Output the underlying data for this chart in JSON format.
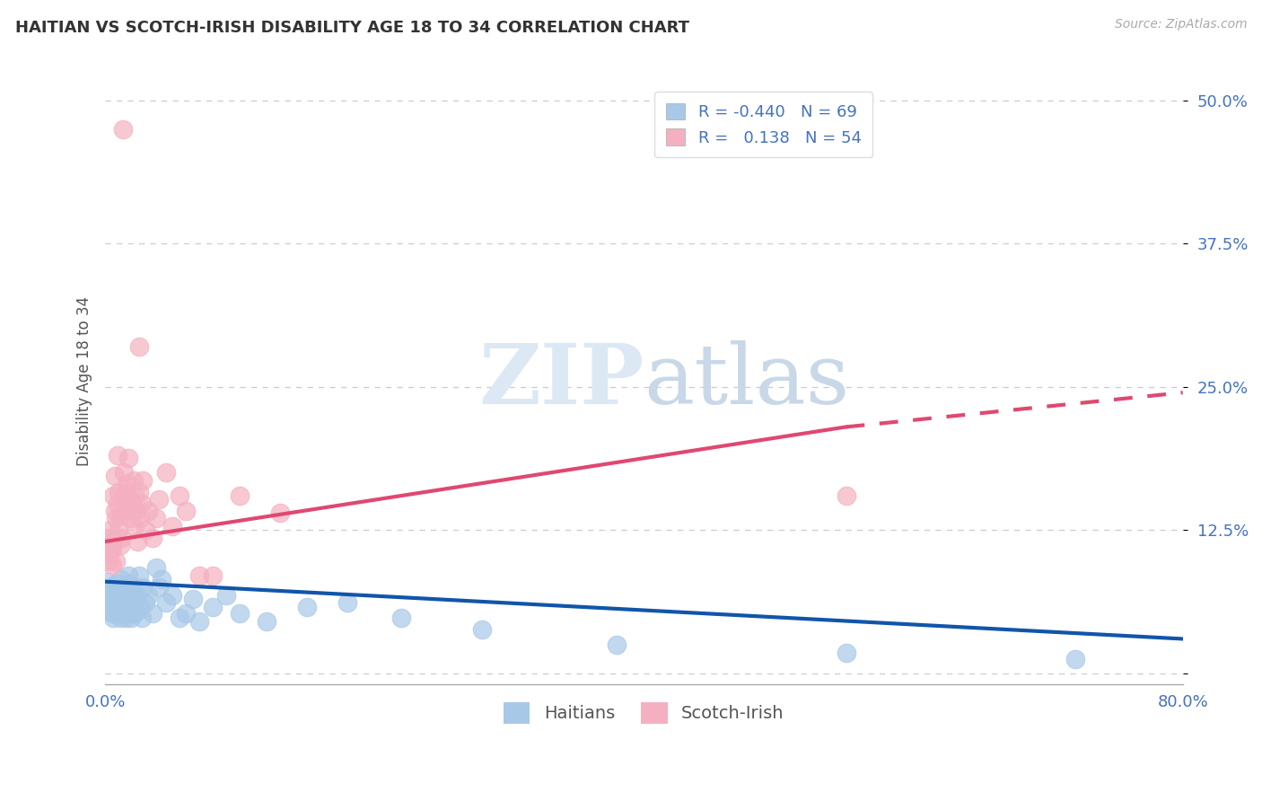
{
  "title": "HAITIAN VS SCOTCH-IRISH DISABILITY AGE 18 TO 34 CORRELATION CHART",
  "source": "Source: ZipAtlas.com",
  "ylabel": "Disability Age 18 to 34",
  "xlim": [
    0.0,
    0.8
  ],
  "ylim": [
    -0.01,
    0.52
  ],
  "yticks": [
    0.0,
    0.125,
    0.25,
    0.375,
    0.5
  ],
  "ytick_labels": [
    "",
    "12.5%",
    "25.0%",
    "37.5%",
    "50.0%"
  ],
  "background_color": "#ffffff",
  "grid_color": "#cccccc",
  "legend_R_haitian": "-0.440",
  "legend_N_haitian": "69",
  "legend_R_scotch": "0.138",
  "legend_N_scotch": "54",
  "haitian_color": "#a8c8e8",
  "scotch_color": "#f4b0c0",
  "haitian_line_color": "#1155aa",
  "scotch_line_color": "#e04870",
  "haitian_scatter": [
    [
      0.001,
      0.08
    ],
    [
      0.002,
      0.062
    ],
    [
      0.003,
      0.072
    ],
    [
      0.003,
      0.055
    ],
    [
      0.004,
      0.068
    ],
    [
      0.005,
      0.052
    ],
    [
      0.005,
      0.075
    ],
    [
      0.006,
      0.065
    ],
    [
      0.006,
      0.048
    ],
    [
      0.007,
      0.07
    ],
    [
      0.007,
      0.058
    ],
    [
      0.008,
      0.062
    ],
    [
      0.008,
      0.078
    ],
    [
      0.009,
      0.055
    ],
    [
      0.009,
      0.068
    ],
    [
      0.01,
      0.052
    ],
    [
      0.01,
      0.072
    ],
    [
      0.011,
      0.048
    ],
    [
      0.011,
      0.065
    ],
    [
      0.012,
      0.082
    ],
    [
      0.012,
      0.058
    ],
    [
      0.013,
      0.075
    ],
    [
      0.013,
      0.062
    ],
    [
      0.014,
      0.055
    ],
    [
      0.014,
      0.068
    ],
    [
      0.015,
      0.048
    ],
    [
      0.015,
      0.072
    ],
    [
      0.016,
      0.065
    ],
    [
      0.016,
      0.052
    ],
    [
      0.017,
      0.085
    ],
    [
      0.017,
      0.078
    ],
    [
      0.018,
      0.068
    ],
    [
      0.018,
      0.055
    ],
    [
      0.019,
      0.048
    ],
    [
      0.019,
      0.062
    ],
    [
      0.02,
      0.075
    ],
    [
      0.02,
      0.058
    ],
    [
      0.021,
      0.052
    ],
    [
      0.022,
      0.068
    ],
    [
      0.022,
      0.072
    ],
    [
      0.023,
      0.065
    ],
    [
      0.024,
      0.055
    ],
    [
      0.025,
      0.085
    ],
    [
      0.026,
      0.058
    ],
    [
      0.027,
      0.048
    ],
    [
      0.028,
      0.075
    ],
    [
      0.03,
      0.062
    ],
    [
      0.032,
      0.068
    ],
    [
      0.035,
      0.052
    ],
    [
      0.038,
      0.092
    ],
    [
      0.04,
      0.075
    ],
    [
      0.042,
      0.082
    ],
    [
      0.045,
      0.062
    ],
    [
      0.05,
      0.068
    ],
    [
      0.055,
      0.048
    ],
    [
      0.06,
      0.052
    ],
    [
      0.065,
      0.065
    ],
    [
      0.07,
      0.045
    ],
    [
      0.08,
      0.058
    ],
    [
      0.09,
      0.068
    ],
    [
      0.1,
      0.052
    ],
    [
      0.12,
      0.045
    ],
    [
      0.15,
      0.058
    ],
    [
      0.18,
      0.062
    ],
    [
      0.22,
      0.048
    ],
    [
      0.28,
      0.038
    ],
    [
      0.38,
      0.025
    ],
    [
      0.55,
      0.018
    ],
    [
      0.72,
      0.012
    ]
  ],
  "scotch_scatter": [
    [
      0.001,
      0.108
    ],
    [
      0.002,
      0.118
    ],
    [
      0.003,
      0.105
    ],
    [
      0.003,
      0.098
    ],
    [
      0.004,
      0.112
    ],
    [
      0.004,
      0.125
    ],
    [
      0.005,
      0.108
    ],
    [
      0.005,
      0.095
    ],
    [
      0.006,
      0.115
    ],
    [
      0.006,
      0.155
    ],
    [
      0.007,
      0.142
    ],
    [
      0.007,
      0.172
    ],
    [
      0.008,
      0.098
    ],
    [
      0.008,
      0.135
    ],
    [
      0.009,
      0.148
    ],
    [
      0.009,
      0.19
    ],
    [
      0.01,
      0.158
    ],
    [
      0.01,
      0.125
    ],
    [
      0.011,
      0.112
    ],
    [
      0.011,
      0.138
    ],
    [
      0.012,
      0.118
    ],
    [
      0.013,
      0.475
    ],
    [
      0.014,
      0.175
    ],
    [
      0.015,
      0.158
    ],
    [
      0.015,
      0.142
    ],
    [
      0.016,
      0.165
    ],
    [
      0.017,
      0.188
    ],
    [
      0.018,
      0.152
    ],
    [
      0.019,
      0.135
    ],
    [
      0.02,
      0.148
    ],
    [
      0.021,
      0.168
    ],
    [
      0.022,
      0.155
    ],
    [
      0.022,
      0.128
    ],
    [
      0.023,
      0.142
    ],
    [
      0.024,
      0.115
    ],
    [
      0.025,
      0.285
    ],
    [
      0.025,
      0.158
    ],
    [
      0.026,
      0.135
    ],
    [
      0.027,
      0.148
    ],
    [
      0.028,
      0.168
    ],
    [
      0.03,
      0.125
    ],
    [
      0.032,
      0.142
    ],
    [
      0.035,
      0.118
    ],
    [
      0.038,
      0.135
    ],
    [
      0.04,
      0.152
    ],
    [
      0.045,
      0.175
    ],
    [
      0.05,
      0.128
    ],
    [
      0.055,
      0.155
    ],
    [
      0.06,
      0.142
    ],
    [
      0.07,
      0.085
    ],
    [
      0.08,
      0.085
    ],
    [
      0.1,
      0.155
    ],
    [
      0.13,
      0.14
    ],
    [
      0.55,
      0.155
    ]
  ],
  "haitian_line": [
    0.0,
    0.8,
    0.08,
    0.03
  ],
  "scotch_line_solid": [
    0.0,
    0.55,
    0.115,
    0.215
  ],
  "scotch_line_dash": [
    0.55,
    0.8,
    0.215,
    0.245
  ]
}
